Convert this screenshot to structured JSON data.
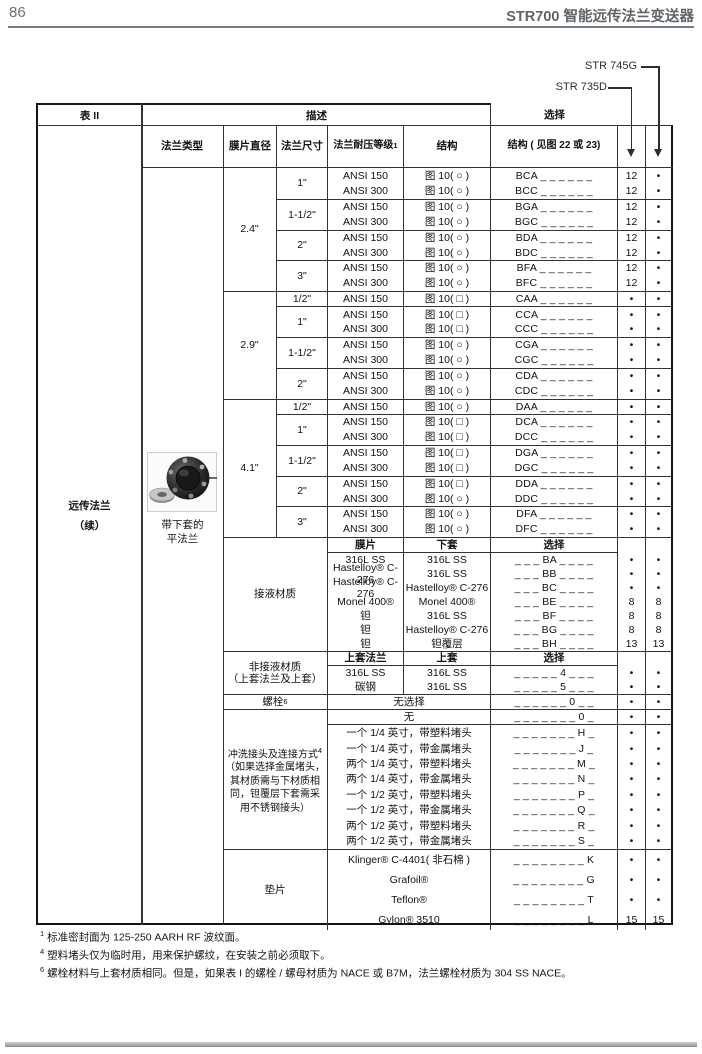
{
  "page": {
    "number": "86",
    "title": "STR700 智能远传法兰变送器"
  },
  "pointers": {
    "right": "STR 745G",
    "left": "STR 735D"
  },
  "table": {
    "corner": "表 II",
    "desc": "描述",
    "select": "选择",
    "headers": {
      "flange_type": "法兰类型",
      "diaphragm": "膜片直径",
      "flange_size": "法兰尺寸",
      "rating": "法兰耐压等级",
      "rating_sup": "1",
      "structure": "结构",
      "structure_ref": "结构 ( 见图 22 或 23)"
    },
    "row_group": {
      "line1": "远传法兰",
      "line2": "（续）"
    },
    "flange_caption": {
      "line1": "带下套的",
      "line2": "平法兰"
    },
    "spec_sections": [
      {
        "diameter": "2.4\"",
        "groups": [
          {
            "size": "1\"",
            "rows": [
              [
                "ANSI 150",
                "图 10( ○ )",
                "BCA _ _ _ _ _ _",
                "12",
                "•"
              ],
              [
                "ANSI 300",
                "图 10( ○ )",
                "BCC _ _ _ _ _ _",
                "12",
                "•"
              ]
            ]
          },
          {
            "size": "1-1/2\"",
            "rows": [
              [
                "ANSI 150",
                "图 10( ○ )",
                "BGA _ _ _ _ _ _",
                "12",
                "•"
              ],
              [
                "ANSI 300",
                "图 10( ○ )",
                "BGC _ _ _ _ _ _",
                "12",
                "•"
              ]
            ]
          },
          {
            "size": "2\"",
            "rows": [
              [
                "ANSI 150",
                "图 10( ○ )",
                "BDA _ _ _ _ _ _",
                "12",
                "•"
              ],
              [
                "ANSI 300",
                "图 10( ○ )",
                "BDC _ _ _ _ _ _",
                "12",
                "•"
              ]
            ]
          },
          {
            "size": "3\"",
            "rows": [
              [
                "ANSI 150",
                "图 10( ○ )",
                "BFA _ _ _ _ _ _",
                "12",
                "•"
              ],
              [
                "ANSI 300",
                "图 10( ○ )",
                "BFC _ _ _ _ _ _",
                "12",
                "•"
              ]
            ]
          }
        ]
      },
      {
        "diameter": "2.9\"",
        "groups": [
          {
            "size": "1/2\"",
            "rows": [
              [
                "ANSI 150",
                "图 10( □ )",
                "CAA _ _ _ _ _ _",
                "•",
                "•"
              ]
            ]
          },
          {
            "size": "1\"",
            "rows": [
              [
                "ANSI 150",
                "图 10( □ )",
                "CCA _ _ _ _ _ _",
                "•",
                "•"
              ],
              [
                "ANSI 300",
                "图 10( □ )",
                "CCC _ _ _ _ _ _",
                "•",
                "•"
              ]
            ]
          },
          {
            "size": "1-1/2\"",
            "rows": [
              [
                "ANSI 150",
                "图 10( ○ )",
                "CGA _ _ _ _ _ _",
                "•",
                "•"
              ],
              [
                "ANSI 300",
                "图 10( ○ )",
                "CGC _ _ _ _ _ _",
                "•",
                "•"
              ]
            ]
          },
          {
            "size": "2\"",
            "rows": [
              [
                "ANSI 150",
                "图 10( ○ )",
                "CDA _ _ _ _ _ _",
                "•",
                "•"
              ],
              [
                "ANSI 300",
                "图 10( ○ )",
                "CDC _ _ _ _ _ _",
                "•",
                "•"
              ]
            ]
          }
        ]
      },
      {
        "diameter": "4.1\"",
        "groups": [
          {
            "size": "1/2\"",
            "rows": [
              [
                "ANSI 150",
                "图 10( ○ )",
                "DAA _ _ _ _ _ _",
                "•",
                "•"
              ]
            ]
          },
          {
            "size": "1\"",
            "rows": [
              [
                "ANSI 150",
                "图 10( □ )",
                "DCA _ _ _ _ _ _",
                "•",
                "•"
              ],
              [
                "ANSI 300",
                "图 10( □ )",
                "DCC _ _ _ _ _ _",
                "•",
                "•"
              ]
            ]
          },
          {
            "size": "1-1/2\"",
            "rows": [
              [
                "ANSI 150",
                "图 10( □ )",
                "DGA _ _ _ _ _ _",
                "•",
                "•"
              ],
              [
                "ANSI 300",
                "图 10( □ )",
                "DGC _ _ _ _ _ _",
                "•",
                "•"
              ]
            ]
          },
          {
            "size": "2\"",
            "rows": [
              [
                "ANSI 150",
                "图 10( □ )",
                "DDA _ _ _ _ _ _",
                "•",
                "•"
              ],
              [
                "ANSI 300",
                "图 10( ○ )",
                "DDC _ _ _ _ _ _",
                "•",
                "•"
              ]
            ]
          },
          {
            "size": "3\"",
            "rows": [
              [
                "ANSI 150",
                "图 10( ○ )",
                "DFA _ _ _ _ _ _",
                "•",
                "•"
              ],
              [
                "ANSI 300",
                "图 10( ○ )",
                "DFC _ _ _ _ _ _",
                "•",
                "•"
              ]
            ]
          }
        ]
      }
    ],
    "wetted": {
      "label": "接液材质",
      "headers": [
        "膜片",
        "下套",
        "选择"
      ],
      "rows": [
        [
          "316L SS",
          "316L SS",
          "_ _ _ BA _ _ _ _",
          "•",
          "•"
        ],
        [
          "Hastelloy® C-276",
          "316L SS",
          "_ _ _ BB _ _ _ _",
          "•",
          "•"
        ],
        [
          "Hastelloy® C-276",
          "Hastelloy® C-276",
          "_ _ _ BC _ _ _ _",
          "•",
          "•"
        ],
        [
          "Monel 400®",
          "Monel 400®",
          "_ _ _ BE _ _ _ _",
          "8",
          "8"
        ],
        [
          "钽",
          "316L SS",
          "_ _ _ BF _ _ _ _",
          "8",
          "8"
        ],
        [
          "钽",
          "Hastelloy® C-276",
          "_ _ _ BG _ _ _ _",
          "8",
          "8"
        ],
        [
          "钽",
          "钽覆层",
          "_ _ _ BH _ _ _ _",
          "13",
          "13"
        ]
      ]
    },
    "nonwetted": {
      "label1": "非接液材质",
      "label2": "（上套法兰及上套）",
      "headers": [
        "上套法兰",
        "上套",
        "选择"
      ],
      "rows": [
        [
          "316L SS",
          "316L SS",
          "_ _ _ _ _ 4 _ _ _",
          "•",
          "•"
        ],
        [
          "碳钢",
          "316L SS",
          "_ _ _ _ _ 5 _ _ _",
          "•",
          "•"
        ]
      ]
    },
    "bolts": {
      "label": "螺栓",
      "label_sup": "6",
      "rows": [
        [
          "无选择",
          "_ _ _ _ _ _ 0 _ _",
          "•",
          "•"
        ]
      ]
    },
    "flush": {
      "label_line1": "冲洗接头及连接方式",
      "label_sup": "4",
      "label_lines": [
        "（如果选择金属堵头，",
        "其材质需与下材质相",
        "同，钽覆层下套需采",
        "用不锈钢接头）"
      ],
      "rows": [
        [
          "无",
          "_ _ _ _ _ _ _ 0 _",
          "•",
          "•"
        ],
        [
          "一个 1/4 英寸，带塑料堵头",
          "_ _ _ _ _ _ _ H _",
          "•",
          "•"
        ],
        [
          "一个 1/4 英寸，带金属堵头",
          "_ _ _ _ _ _ _ J _",
          "•",
          "•"
        ],
        [
          "两个 1/4 英寸，带塑料堵头",
          "_ _ _ _ _ _ _ M _",
          "•",
          "•"
        ],
        [
          "两个 1/4 英寸，带金属堵头",
          "_ _ _ _ _ _ _ N _",
          "•",
          "•"
        ],
        [
          "一个 1/2 英寸，带塑料堵头",
          "_ _ _ _ _ _ _ P _",
          "•",
          "•"
        ],
        [
          "一个 1/2 英寸，带金属堵头",
          "_ _ _ _ _ _ _ Q _",
          "•",
          "•"
        ],
        [
          "两个 1/2 英寸，带塑料堵头",
          "_ _ _ _ _ _ _ R _",
          "•",
          "•"
        ],
        [
          "两个 1/2 英寸，带金属堵头",
          "_ _ _ _ _ _ _ S _",
          "•",
          "•"
        ]
      ]
    },
    "gasket": {
      "label": "垫片",
      "rows": [
        [
          "Klinger® C-4401( 非石棉 )",
          "_ _ _ _ _ _ _ _ K",
          "•",
          "•"
        ],
        [
          "Grafoil®",
          "_ _ _ _ _ _ _ _ G",
          "•",
          "•"
        ],
        [
          "Teflon®",
          "_ _ _ _ _ _ _ _ T",
          "•",
          "•"
        ],
        [
          "Gylon® 3510",
          "_ _ _ _ _ _ _ _ L",
          "15",
          "15"
        ]
      ]
    }
  },
  "footnotes": [
    {
      "sup": "1",
      "text": "标准密封面为 125-250 AARH RF 波纹面。"
    },
    {
      "sup": "4",
      "text": "塑料堵头仅为临时用，用来保护螺纹，在安装之前必须取下。"
    },
    {
      "sup": "6",
      "text": "螺栓材料与上套材质相同。但是，如果表 I 的螺栓 / 螺母材质为 NACE 或 B7M，法兰螺栓材质为 304 SS NACE。"
    }
  ]
}
